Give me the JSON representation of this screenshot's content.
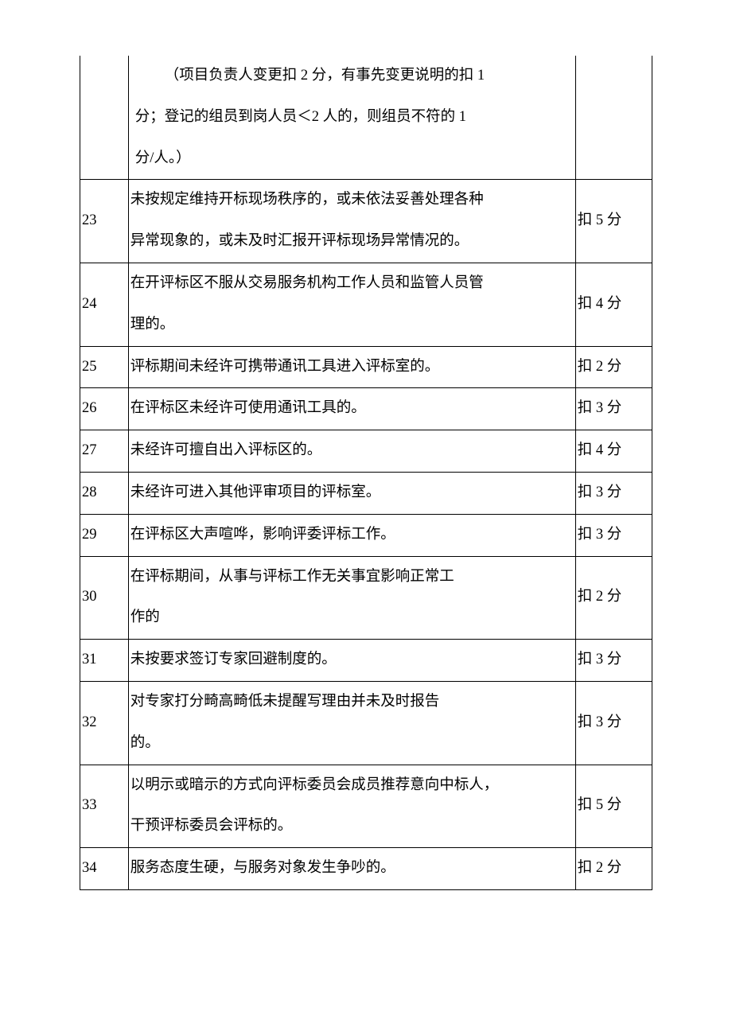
{
  "table": {
    "columns": {
      "num_width": 60,
      "desc_width": 555,
      "score_width": 95
    },
    "font_size": 18.5,
    "line_height": 2.8,
    "border_color": "#000000",
    "text_color": "#000000",
    "background_color": "#ffffff",
    "rows": [
      {
        "num": "",
        "desc_lines": [
          "（项目负责人变更扣 2 分，有事先变更说明的扣 1",
          "分；登记的组员到岗人员＜2 人的，则组员不符的 1",
          "分/人。）"
        ],
        "desc_indent": true,
        "score": "",
        "no_top_border": true
      },
      {
        "num": "23",
        "desc_lines": [
          "未按规定维持开标现场秩序的，或未依法妥善处理各种",
          "异常现象的，或未及时汇报开评标现场异常情况的。"
        ],
        "score": "扣 5 分"
      },
      {
        "num": "24",
        "desc_lines": [
          "在开评标区不服从交易服务机构工作人员和监管人员管",
          "理的。"
        ],
        "score": "扣 4 分"
      },
      {
        "num": "25",
        "desc_lines": [
          "评标期间未经许可携带通讯工具进入评标室的。"
        ],
        "score": "扣 2 分"
      },
      {
        "num": "26",
        "desc_lines": [
          "在评标区未经许可使用通讯工具的。"
        ],
        "score": "扣 3 分"
      },
      {
        "num": "27",
        "desc_lines": [
          "未经许可擅自出入评标区的。"
        ],
        "score": "扣 4 分"
      },
      {
        "num": "28",
        "desc_lines": [
          "未经许可进入其他评审项目的评标室。"
        ],
        "score": "扣 3 分"
      },
      {
        "num": "29",
        "desc_lines": [
          "在评标区大声喧哗，影响评委评标工作。"
        ],
        "score": "扣 3 分"
      },
      {
        "num": "30",
        "desc_lines": [
          "在评标期间，从事与评标工作无关事宜影响正常工",
          "作的"
        ],
        "score": "扣 2 分"
      },
      {
        "num": "31",
        "desc_lines": [
          "未按要求签订专家回避制度的。"
        ],
        "score": "扣 3 分"
      },
      {
        "num": "32",
        "desc_lines": [
          "对专家打分畸高畸低未提醒写理由并未及时报告",
          "的。"
        ],
        "score": "扣 3 分"
      },
      {
        "num": "33",
        "desc_lines": [
          "以明示或暗示的方式向评标委员会成员推荐意向中标人，",
          "干预评标委员会评标的。"
        ],
        "score": "扣 5 分"
      },
      {
        "num": "34",
        "desc_lines": [
          "服务态度生硬，与服务对象发生争吵的。"
        ],
        "score": "扣 2 分"
      }
    ]
  }
}
